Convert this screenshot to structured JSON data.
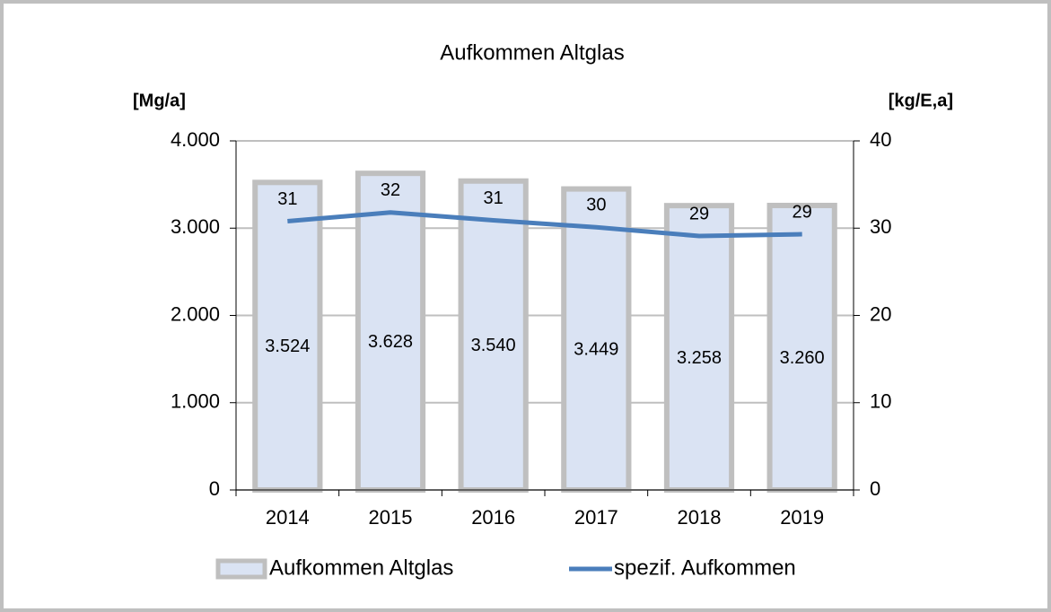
{
  "chart_data": {
    "type": "bar",
    "title": "Aufkommen Altglas",
    "y_label": "[Mg/a]",
    "y2_label": "[kg/E,a]",
    "categories": [
      "2014",
      "2015",
      "2016",
      "2017",
      "2018",
      "2019"
    ],
    "series": [
      {
        "name": "Aufkommen Altglas",
        "type": "bar",
        "color": "#dae3f3",
        "edge_color": "#bfbfbf",
        "values": [
          3524,
          3628,
          3540,
          3449,
          3258,
          3260
        ],
        "value_labels": [
          "3.524",
          "3.628",
          "3.540",
          "3.449",
          "3.258",
          "3.260"
        ]
      },
      {
        "name": "spezif. Aufkommen",
        "type": "line",
        "axis": "y2",
        "color": "#4a7ebb",
        "values": [
          30.8,
          31.8,
          30.9,
          30.1,
          29.1,
          29.3
        ],
        "value_labels": [
          "31",
          "32",
          "31",
          "30",
          "29",
          "29"
        ]
      }
    ],
    "ylim": [
      0,
      4000
    ],
    "yticks": [
      0,
      {
        "value": 1000,
        "label": "1.000"
      },
      {
        "value": 2000,
        "label": "2.000"
      },
      {
        "value": 3000,
        "label": "3.000"
      },
      {
        "value": 4000,
        "label": "4.000"
      }
    ],
    "y2lim": [
      0,
      40
    ],
    "y2ticks": [
      0,
      10,
      20,
      30,
      40
    ],
    "grid": true,
    "legend": "bottom"
  }
}
